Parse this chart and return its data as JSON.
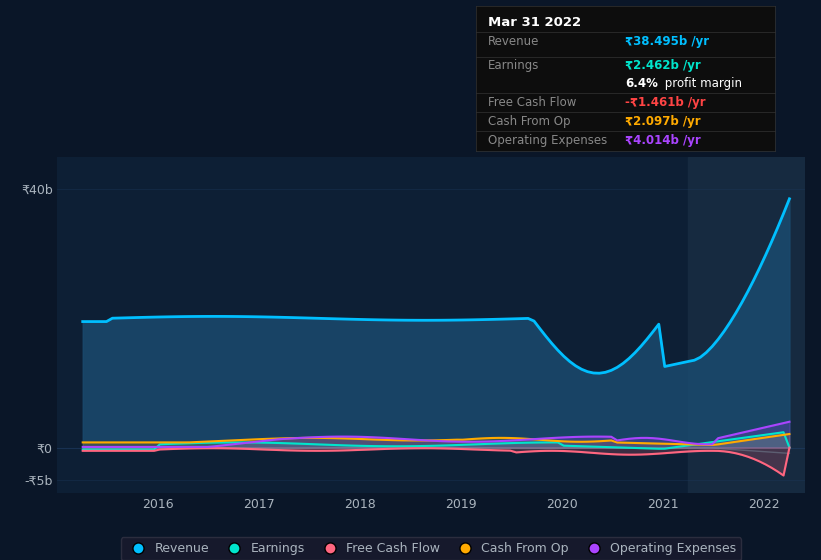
{
  "bg_color": "#0a1628",
  "plot_bg_color": "#0d1f35",
  "grid_color": "#1e3a5f",
  "text_color": "#aab4be",
  "ylim": [
    -7,
    45
  ],
  "xlim": [
    2015.0,
    2022.4
  ],
  "highlight_x_start": 2021.25,
  "highlight_x_end": 2022.4,
  "revenue_color": "#00bfff",
  "revenue_fill_color": "#1a4a6e",
  "earnings_color": "#00e5cc",
  "fcf_color": "#ff6680",
  "cashfromop_color": "#ffaa00",
  "opex_color": "#aa44ff",
  "gray_color": "#778899",
  "info_box": {
    "title": "Mar 31 2022",
    "revenue_label": "Revenue",
    "revenue_value": "₹38.495b /yr",
    "revenue_color": "#00bfff",
    "earnings_label": "Earnings",
    "earnings_value": "₹2.462b /yr",
    "earnings_color": "#00e5cc",
    "fcf_label": "Free Cash Flow",
    "fcf_value": "-₹1.461b /yr",
    "fcf_color": "#ff4444",
    "cashop_label": "Cash From Op",
    "cashop_value": "₹2.097b /yr",
    "cashop_color": "#ffaa00",
    "opex_label": "Operating Expenses",
    "opex_value": "₹4.014b /yr",
    "opex_color": "#aa44ff",
    "box_bg": "#0d0d0d",
    "box_border": "#333333",
    "label_color": "#888888"
  },
  "legend": [
    {
      "label": "Revenue",
      "color": "#00bfff"
    },
    {
      "label": "Earnings",
      "color": "#00e5cc"
    },
    {
      "label": "Free Cash Flow",
      "color": "#ff6680"
    },
    {
      "label": "Cash From Op",
      "color": "#ffaa00"
    },
    {
      "label": "Operating Expenses",
      "color": "#aa44ff"
    }
  ]
}
